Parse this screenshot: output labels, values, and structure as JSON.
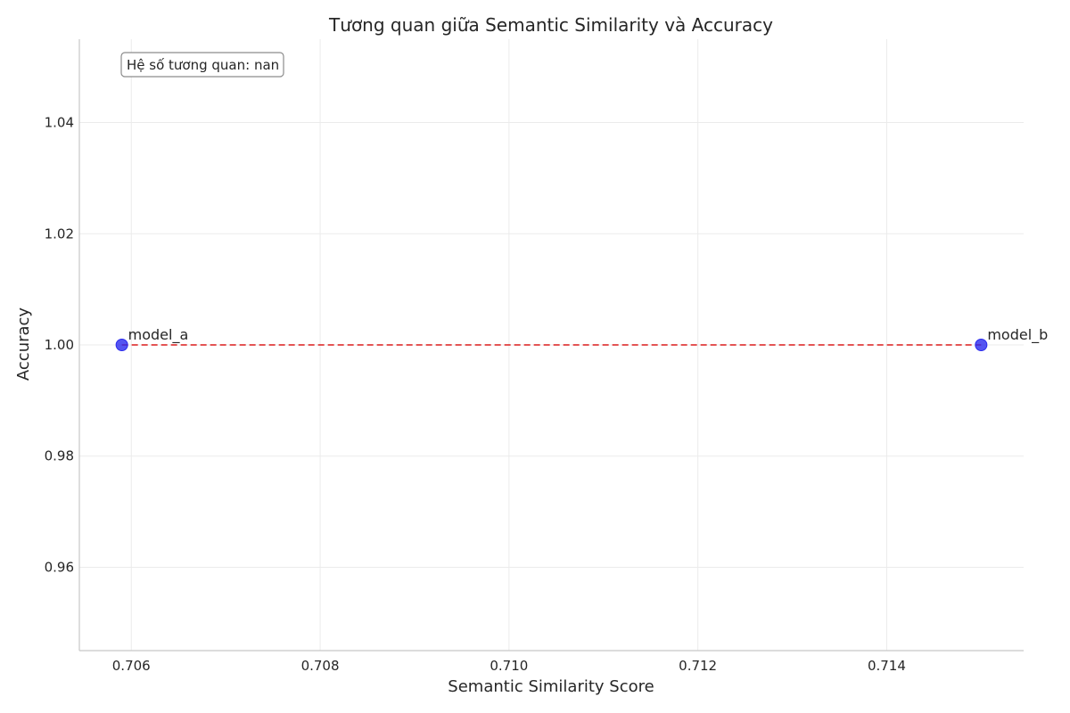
{
  "chart_data": {
    "type": "scatter",
    "title": "Tương quan giữa Semantic Similarity và Accuracy",
    "xlabel": "Semantic Similarity Score",
    "ylabel": "Accuracy",
    "xlim": [
      0.70545,
      0.71545
    ],
    "ylim": [
      0.945,
      1.055
    ],
    "xticks": [
      0.706,
      0.708,
      0.71,
      0.712,
      0.714
    ],
    "xtick_labels": [
      "0.706",
      "0.708",
      "0.710",
      "0.712",
      "0.714"
    ],
    "yticks": [
      0.96,
      0.98,
      1.0,
      1.02,
      1.04
    ],
    "ytick_labels": [
      "0.96",
      "0.98",
      "1.00",
      "1.02",
      "1.04"
    ],
    "grid": true,
    "points": [
      {
        "label": "model_a",
        "x": 0.7059,
        "y": 1.0
      },
      {
        "label": "model_b",
        "x": 0.715,
        "y": 1.0
      }
    ],
    "trend_line": {
      "x": [
        0.7059,
        0.715
      ],
      "y": [
        1.0,
        1.0
      ],
      "style": "dashed",
      "color": "#e03c3c"
    },
    "marker_color": "#2a2aee",
    "annotation": "Hệ số tương quan: nan"
  }
}
